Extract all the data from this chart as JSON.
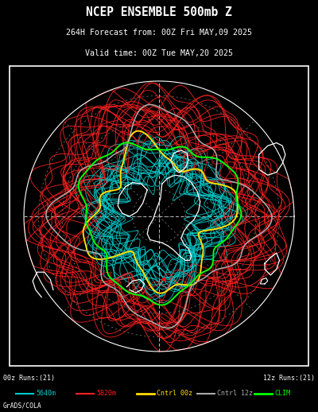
{
  "title_line1": "NCEP ENSEMBLE 500mb Z",
  "title_line2": "264H Forecast from: 00Z Fri MAY,09 2025",
  "title_line3": "Valid time: 00Z Tue MAY,20 2025",
  "background_color": "#000000",
  "plot_border_color": "#ffffff",
  "label_00z": "00z Runs:(21)",
  "label_12z": "12z Runs:(21)",
  "legend_items": [
    {
      "label": "5640m",
      "color": "#00cccc",
      "lw": 1.5
    },
    {
      "label": "5820m",
      "color": "#ff2020",
      "lw": 1.5
    },
    {
      "label": "Cntrl 00z",
      "color": "#ffdd00",
      "lw": 2.0
    },
    {
      "label": "Cntrl 12z",
      "color": "#aaaaaa",
      "lw": 1.5
    },
    {
      "label": "CLIM",
      "color": "#00ff00",
      "lw": 2.0
    }
  ],
  "footer_text": "GrADS/COLA",
  "cyan_color": "#00cccc",
  "red_color": "#ff2020",
  "yellow_color": "#ffdd00",
  "gray_color": "#aaaaaa",
  "green_color": "#00ff00",
  "n_cyan": 21,
  "n_red": 21,
  "dot_circle_radii": [
    0.18,
    0.34,
    0.5,
    0.66,
    0.82
  ],
  "dot_circle_color": "#888888",
  "outer_circle_r": 0.92
}
